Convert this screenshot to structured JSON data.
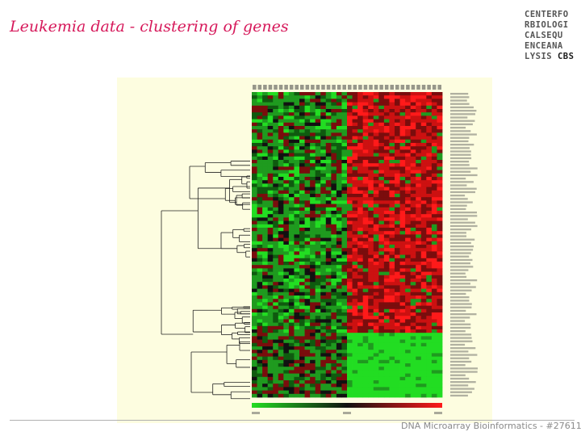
{
  "slide": {
    "title": "Leukemia data - clustering of genes",
    "footer": "DNA Microarray Bioinformatics - #27611"
  },
  "logo": {
    "lines": [
      "CENTERFO",
      "RBIOLOGI",
      "CALSEQU",
      "ENCEANA"
    ],
    "last_line_prefix": "LYSIS ",
    "last_line_suffix": "CBS"
  },
  "figure": {
    "description_tags": [
      "gene-dendrogram-icon",
      "expression-heatmap",
      "color-scale-bar"
    ],
    "colors": {
      "background": "#fdfde0",
      "green_dark": "#0f5a0f",
      "green": "#1f9a1f",
      "green_bright": "#22dd22",
      "black": "#111111",
      "red_dark": "#7a0d0d",
      "red": "#cc1111",
      "red_bright": "#ff1a1a"
    }
  }
}
